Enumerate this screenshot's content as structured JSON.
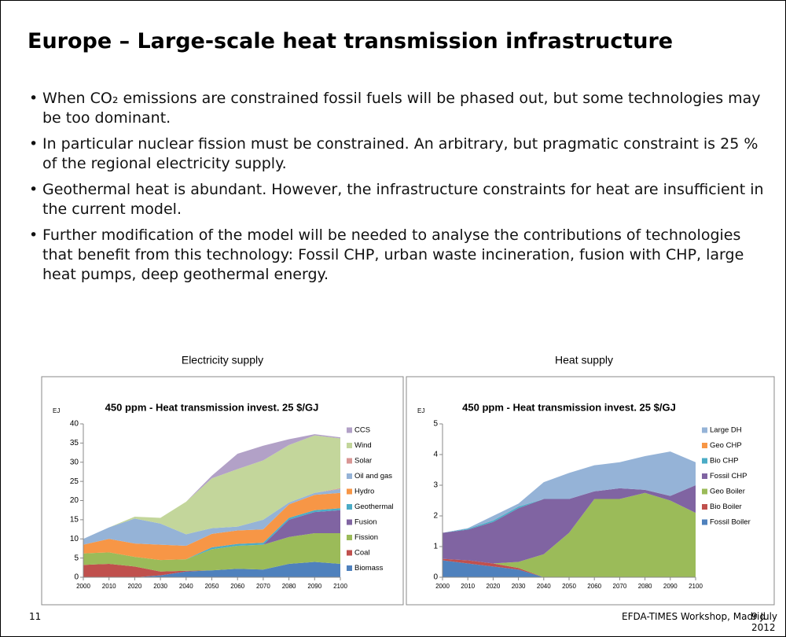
{
  "title": "Europe – Large-scale heat transmission infrastructure",
  "bullets": [
    "When CO₂ emissions are constrained fossil fuels will be phased out, but some technologies may be too dominant.",
    "In particular nuclear fission must be constrained. An arbitrary, but pragmatic constraint is 25 % of the regional electricity supply.",
    "Geothermal heat is abundant. However, the infrastructure constraints for heat are insufficient in the current model.",
    "Further modification of the model will be needed to analyse the contributions of technologies that benefit from this technology: Fossil CHP, urban waste incineration, fusion with CHP, large heat pumps, deep geothermal energy."
  ],
  "footer": {
    "page": "11",
    "event": "EFDA-TIMES Workshop, Madrid",
    "date": "9 July 2012"
  },
  "chart_data": [
    {
      "type": "area",
      "stacked": true,
      "caption": "Electricity supply",
      "title": "450 ppm - Heat transmission invest. 25 $/GJ",
      "y_label": "EJ",
      "x": [
        2000,
        2010,
        2020,
        2030,
        2040,
        2050,
        2060,
        2070,
        2080,
        2090,
        2100
      ],
      "xlim": [
        2000,
        2100
      ],
      "xticks": [
        2000,
        2010,
        2020,
        2030,
        2040,
        2050,
        2060,
        2070,
        2080,
        2090,
        2100
      ],
      "ylim": [
        0,
        40
      ],
      "yticks": [
        0,
        5,
        10,
        15,
        20,
        25,
        30,
        35,
        40
      ],
      "grid": false,
      "series": [
        {
          "name": "Biomass",
          "color": "#4f81bd",
          "values": [
            0,
            0,
            0,
            0.5,
            1.5,
            1.8,
            2.2,
            2,
            3.5,
            4,
            3.5
          ]
        },
        {
          "name": "Coal",
          "color": "#c0504d",
          "values": [
            3.2,
            3.5,
            2.8,
            1,
            0.2,
            0,
            0,
            0,
            0,
            0,
            0
          ]
        },
        {
          "name": "Fission",
          "color": "#9bbb59",
          "values": [
            3,
            3,
            2.5,
            3,
            3,
            5.5,
            6,
            6.5,
            7,
            7.5,
            8
          ]
        },
        {
          "name": "Fusion",
          "color": "#8064a2",
          "values": [
            0,
            0,
            0,
            0,
            0,
            0,
            0,
            0,
            4.5,
            5.5,
            6
          ]
        },
        {
          "name": "Geothermal",
          "color": "#4bacc6",
          "values": [
            0,
            0,
            0,
            0,
            0,
            0.5,
            0.5,
            0.5,
            0.5,
            0.5,
            0.5
          ]
        },
        {
          "name": "Hydro",
          "color": "#f79646",
          "values": [
            2.3,
            3.5,
            3.5,
            4,
            3.5,
            3.5,
            3.5,
            3.5,
            3.5,
            4,
            4
          ]
        },
        {
          "name": "Oil and gas",
          "color": "#95b3d7",
          "values": [
            1.5,
            3,
            6.5,
            5.5,
            3,
            1.5,
            1,
            2.5,
            0.5,
            0.5,
            1
          ]
        },
        {
          "name": "Solar",
          "color": "#d99694",
          "values": [
            0,
            0,
            0,
            0,
            0,
            0,
            0,
            0,
            0,
            0,
            0.2
          ]
        },
        {
          "name": "Wind",
          "color": "#c3d69b",
          "values": [
            0,
            0,
            0.5,
            1.5,
            8.5,
            13,
            15,
            15.5,
            15,
            15,
            13
          ]
        },
        {
          "name": "CCS",
          "color": "#b2a1c7",
          "values": [
            0,
            0,
            0,
            0,
            0,
            0.7,
            4,
            3.8,
            1.5,
            0.3,
            0.3
          ]
        }
      ]
    },
    {
      "type": "area",
      "stacked": true,
      "caption": "Heat supply",
      "title": "450 ppm - Heat transmission invest. 25 $/GJ",
      "y_label": "EJ",
      "x": [
        2000,
        2010,
        2020,
        2030,
        2040,
        2050,
        2060,
        2070,
        2080,
        2090,
        2100
      ],
      "xlim": [
        2000,
        2100
      ],
      "xticks": [
        2000,
        2010,
        2020,
        2030,
        2040,
        2050,
        2060,
        2070,
        2080,
        2090,
        2100
      ],
      "ylim": [
        0,
        5
      ],
      "yticks": [
        0,
        1,
        2,
        3,
        4,
        5
      ],
      "grid": false,
      "series": [
        {
          "name": "Fossil Boiler",
          "color": "#4f81bd",
          "values": [
            0.55,
            0.45,
            0.35,
            0.25,
            0,
            0,
            0,
            0,
            0,
            0,
            0
          ]
        },
        {
          "name": "Bio Boiler",
          "color": "#c0504d",
          "values": [
            0.05,
            0.1,
            0.1,
            0.05,
            0,
            0,
            0,
            0,
            0,
            0,
            0
          ]
        },
        {
          "name": "Geo Boiler",
          "color": "#9bbb59",
          "values": [
            0,
            0,
            0,
            0.2,
            0.75,
            1.45,
            2.55,
            2.55,
            2.75,
            2.5,
            2.1
          ]
        },
        {
          "name": "Fossil CHP",
          "color": "#8064a2",
          "values": [
            0.85,
            1,
            1.35,
            1.75,
            1.8,
            1.1,
            0.25,
            0.35,
            0.1,
            0.15,
            0.9
          ]
        },
        {
          "name": "Bio CHP",
          "color": "#4bacc6",
          "values": [
            0,
            0.03,
            0.05,
            0.05,
            0,
            0,
            0,
            0,
            0,
            0,
            0
          ]
        },
        {
          "name": "Geo CHP",
          "color": "#f79646",
          "values": [
            0,
            0,
            0,
            0,
            0,
            0,
            0,
            0,
            0,
            0,
            0
          ]
        },
        {
          "name": "Large DH",
          "color": "#95b3d7",
          "values": [
            0,
            0.02,
            0.15,
            0.1,
            0.55,
            0.85,
            0.85,
            0.85,
            1.1,
            1.45,
            0.75
          ]
        }
      ]
    }
  ]
}
